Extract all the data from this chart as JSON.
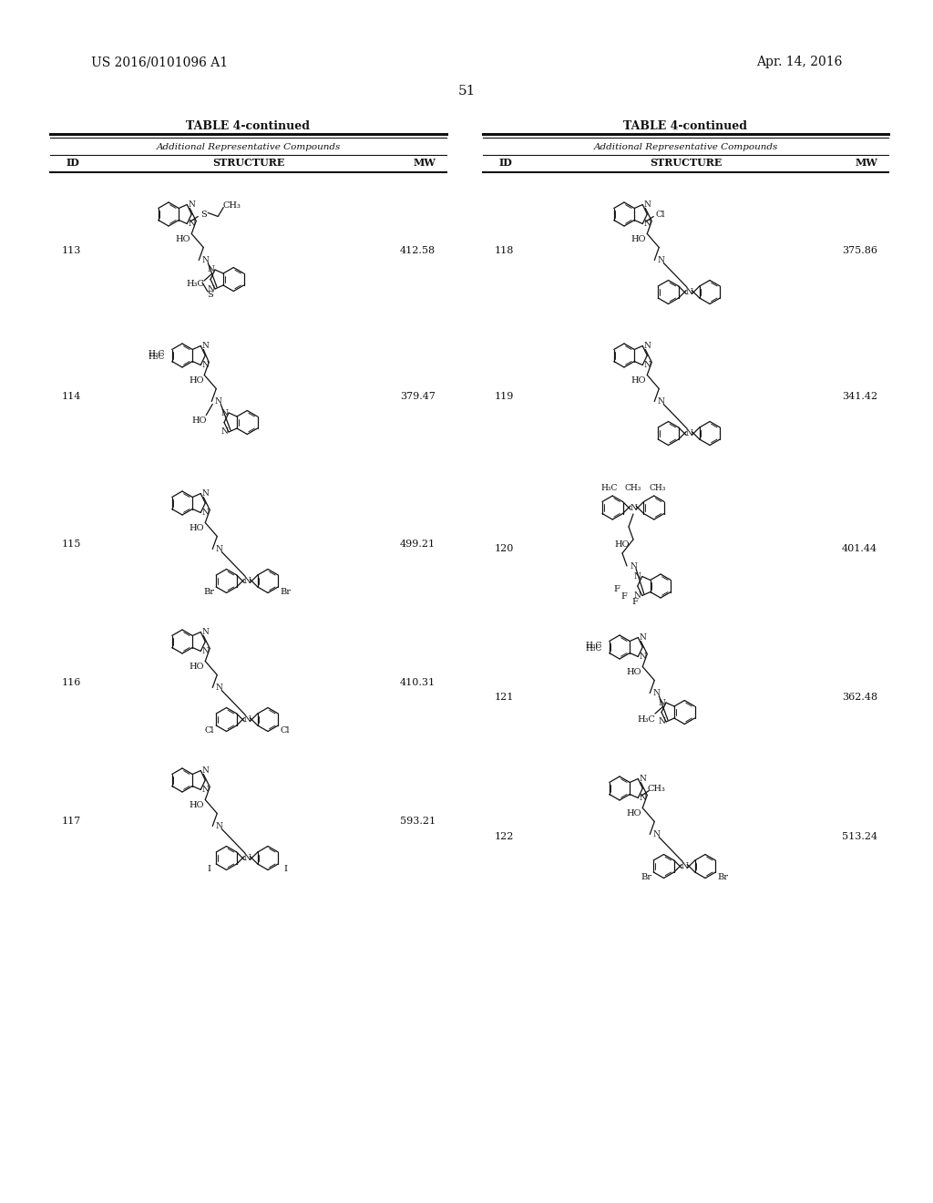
{
  "page_number": "51",
  "patent_number": "US 2016/0101096 A1",
  "patent_date": "Apr. 14, 2016",
  "table_title": "TABLE 4-continued",
  "table_subtitle": "Additional Representative Compounds",
  "background_color": "#ffffff",
  "text_color": "#111111",
  "left_compounds": [
    {
      "id": "113",
      "mw": "412.58"
    },
    {
      "id": "114",
      "mw": "379.47"
    },
    {
      "id": "115",
      "mw": "499.21"
    },
    {
      "id": "116",
      "mw": "410.31"
    },
    {
      "id": "117",
      "mw": "593.21"
    }
  ],
  "right_compounds": [
    {
      "id": "118",
      "mw": "375.86"
    },
    {
      "id": "119",
      "mw": "341.42"
    },
    {
      "id": "120",
      "mw": "401.44"
    },
    {
      "id": "121",
      "mw": "362.48"
    },
    {
      "id": "122",
      "mw": "513.24"
    }
  ]
}
